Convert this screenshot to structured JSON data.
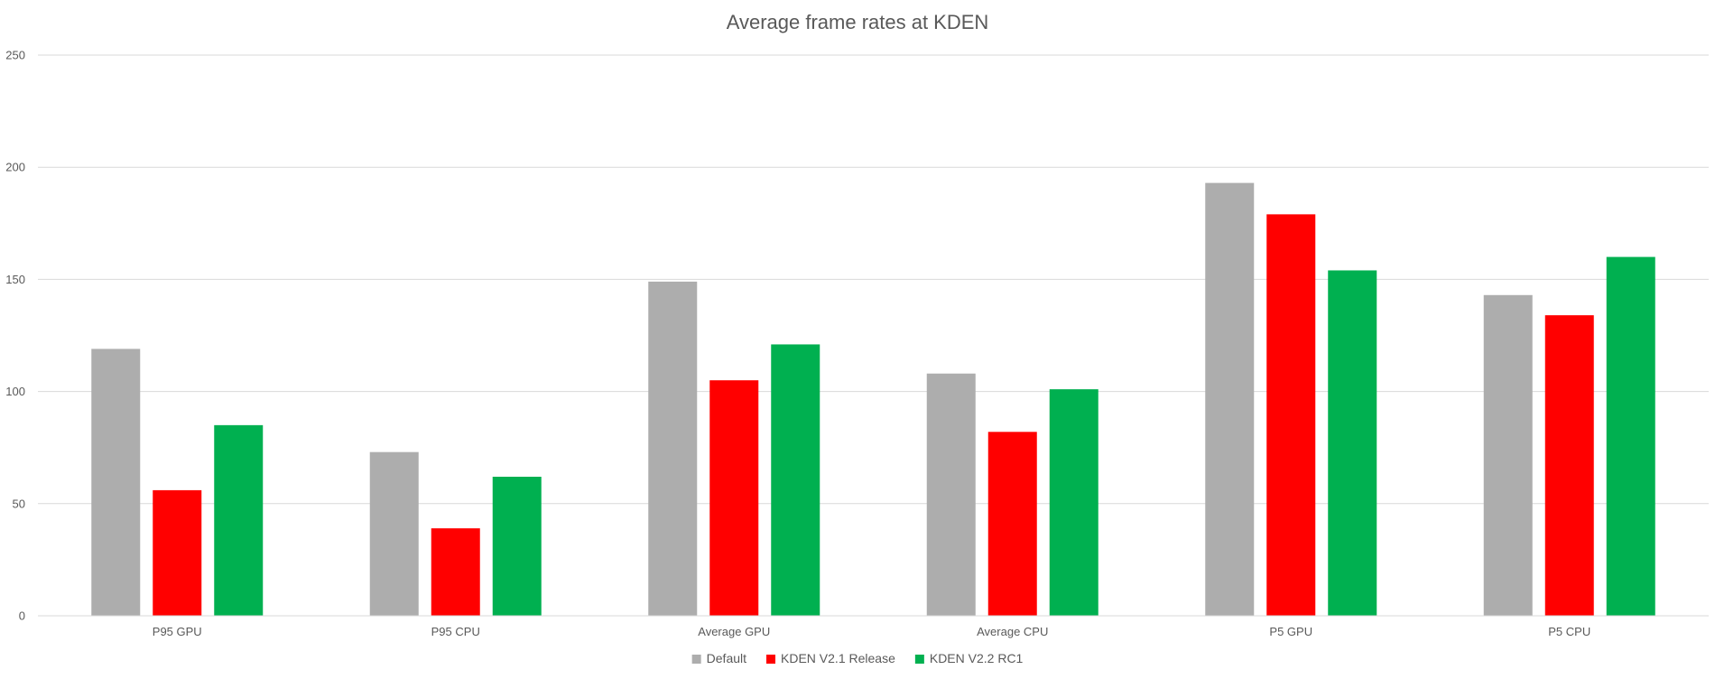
{
  "chart_data": {
    "type": "bar",
    "title": "Average frame rates at KDEN",
    "xlabel": "",
    "ylabel": "",
    "categories": [
      "P95 GPU",
      "P95 CPU",
      "Average GPU",
      "Average CPU",
      "P5 GPU",
      "P5 CPU"
    ],
    "series": [
      {
        "name": "Default",
        "color": "#adadad",
        "values": [
          119,
          73,
          149,
          108,
          193,
          143
        ]
      },
      {
        "name": "KDEN V2.1 Release",
        "color": "#ff0000",
        "values": [
          56,
          39,
          105,
          82,
          179,
          134
        ]
      },
      {
        "name": "KDEN V2.2 RC1",
        "color": "#00b050",
        "values": [
          85,
          62,
          121,
          101,
          154,
          160
        ]
      }
    ],
    "ylim": [
      0,
      250
    ],
    "yticks": [
      0,
      50,
      100,
      150,
      200,
      250
    ],
    "grid": true,
    "legend_position": "bottom"
  }
}
